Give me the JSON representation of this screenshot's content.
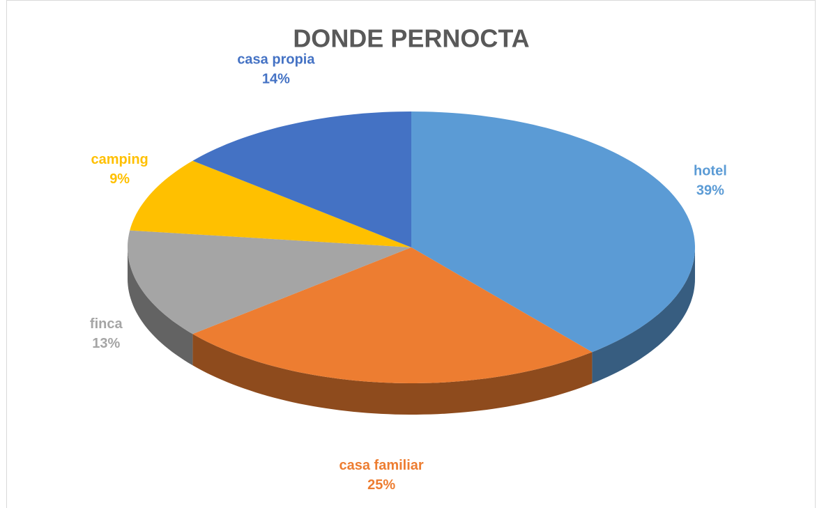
{
  "chart_data": {
    "type": "pie",
    "title": "DONDE PERNOCTA",
    "categories": [
      "hotel",
      "casa familiar",
      "finca",
      "camping",
      "casa propia"
    ],
    "values": [
      39,
      25,
      13,
      9,
      14
    ],
    "value_labels": [
      "39%",
      "25%",
      "13%",
      "9%",
      "14%"
    ],
    "colors": [
      "#5b9bd5",
      "#ed7d31",
      "#a5a5a5",
      "#ffc000",
      "#4472c4"
    ]
  }
}
